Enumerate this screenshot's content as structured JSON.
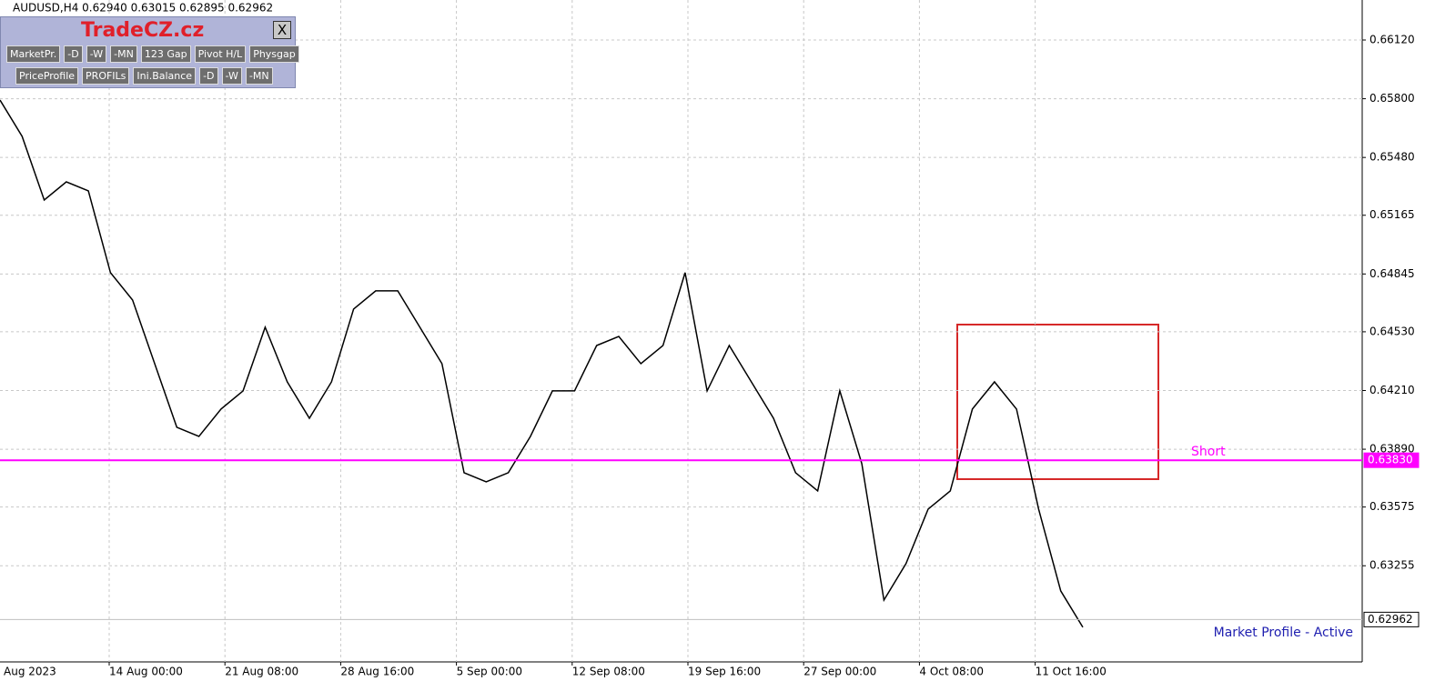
{
  "header": {
    "symbol_text": "AUDUSD,H4  0.62940 0.63015 0.62895 0.62962"
  },
  "panel": {
    "title": "TradeCZ.cz",
    "close": "X",
    "buttons_row1": [
      "MarketPr.",
      "-D",
      "-W",
      "-MN",
      "123 Gap",
      "Pivot H/L",
      "Physgap"
    ],
    "buttons_row2": [
      "PriceProfile",
      "PROFILs",
      "Ini.Balance",
      "-D",
      "-W",
      "-MN"
    ]
  },
  "price_axis": {
    "ylim": [
      0.62731,
      0.66338
    ],
    "ticks": [
      {
        "value": 0.6612,
        "label": "0.66120"
      },
      {
        "value": 0.658,
        "label": "0.65800"
      },
      {
        "value": 0.6548,
        "label": "0.65480"
      },
      {
        "value": 0.65165,
        "label": "0.65165"
      },
      {
        "value": 0.64845,
        "label": "0.64845"
      },
      {
        "value": 0.6453,
        "label": "0.64530"
      },
      {
        "value": 0.6421,
        "label": "0.64210"
      },
      {
        "value": 0.6389,
        "label": "0.63890"
      },
      {
        "value": 0.63575,
        "label": "0.63575"
      },
      {
        "value": 0.63255,
        "label": "0.63255"
      }
    ]
  },
  "time_axis": {
    "labels": [
      "Aug 2023",
      "14 Aug 00:00",
      "21 Aug 08:00",
      "28 Aug 16:00",
      "5 Sep 00:00",
      "12 Sep 08:00",
      "19 Sep 16:00",
      "27 Sep 00:00",
      "4 Oct 08:00",
      "11 Oct 16:00"
    ]
  },
  "price_path": {
    "values": [
      0.65793,
      0.65595,
      0.65248,
      0.65347,
      0.65298,
      0.64852,
      0.64703,
      0.64356,
      0.6401,
      0.6396,
      0.64109,
      0.64208,
      0.64555,
      0.64257,
      0.64059,
      0.64257,
      0.64654,
      0.64753,
      0.64753,
      0.64555,
      0.64356,
      0.63762,
      0.63712,
      0.63762,
      0.6396,
      0.64208,
      0.64208,
      0.64455,
      0.64505,
      0.64356,
      0.64455,
      0.64852,
      0.64208,
      0.64455,
      0.64257,
      0.64059,
      0.63762,
      0.63663,
      0.64208,
      0.63811,
      0.63068,
      0.63267,
      0.63564,
      0.63663,
      0.64109,
      0.64257,
      0.64109,
      0.63564,
      0.63118,
      0.6292
    ]
  },
  "levels": [
    {
      "value": 0.6383,
      "label": "0.63830",
      "note": "Short",
      "color": "#ff00ff"
    },
    {
      "value": 0.62962,
      "label": "0.62962",
      "color": "#c0c0c0"
    }
  ],
  "footer": "Market Profile - Active"
}
